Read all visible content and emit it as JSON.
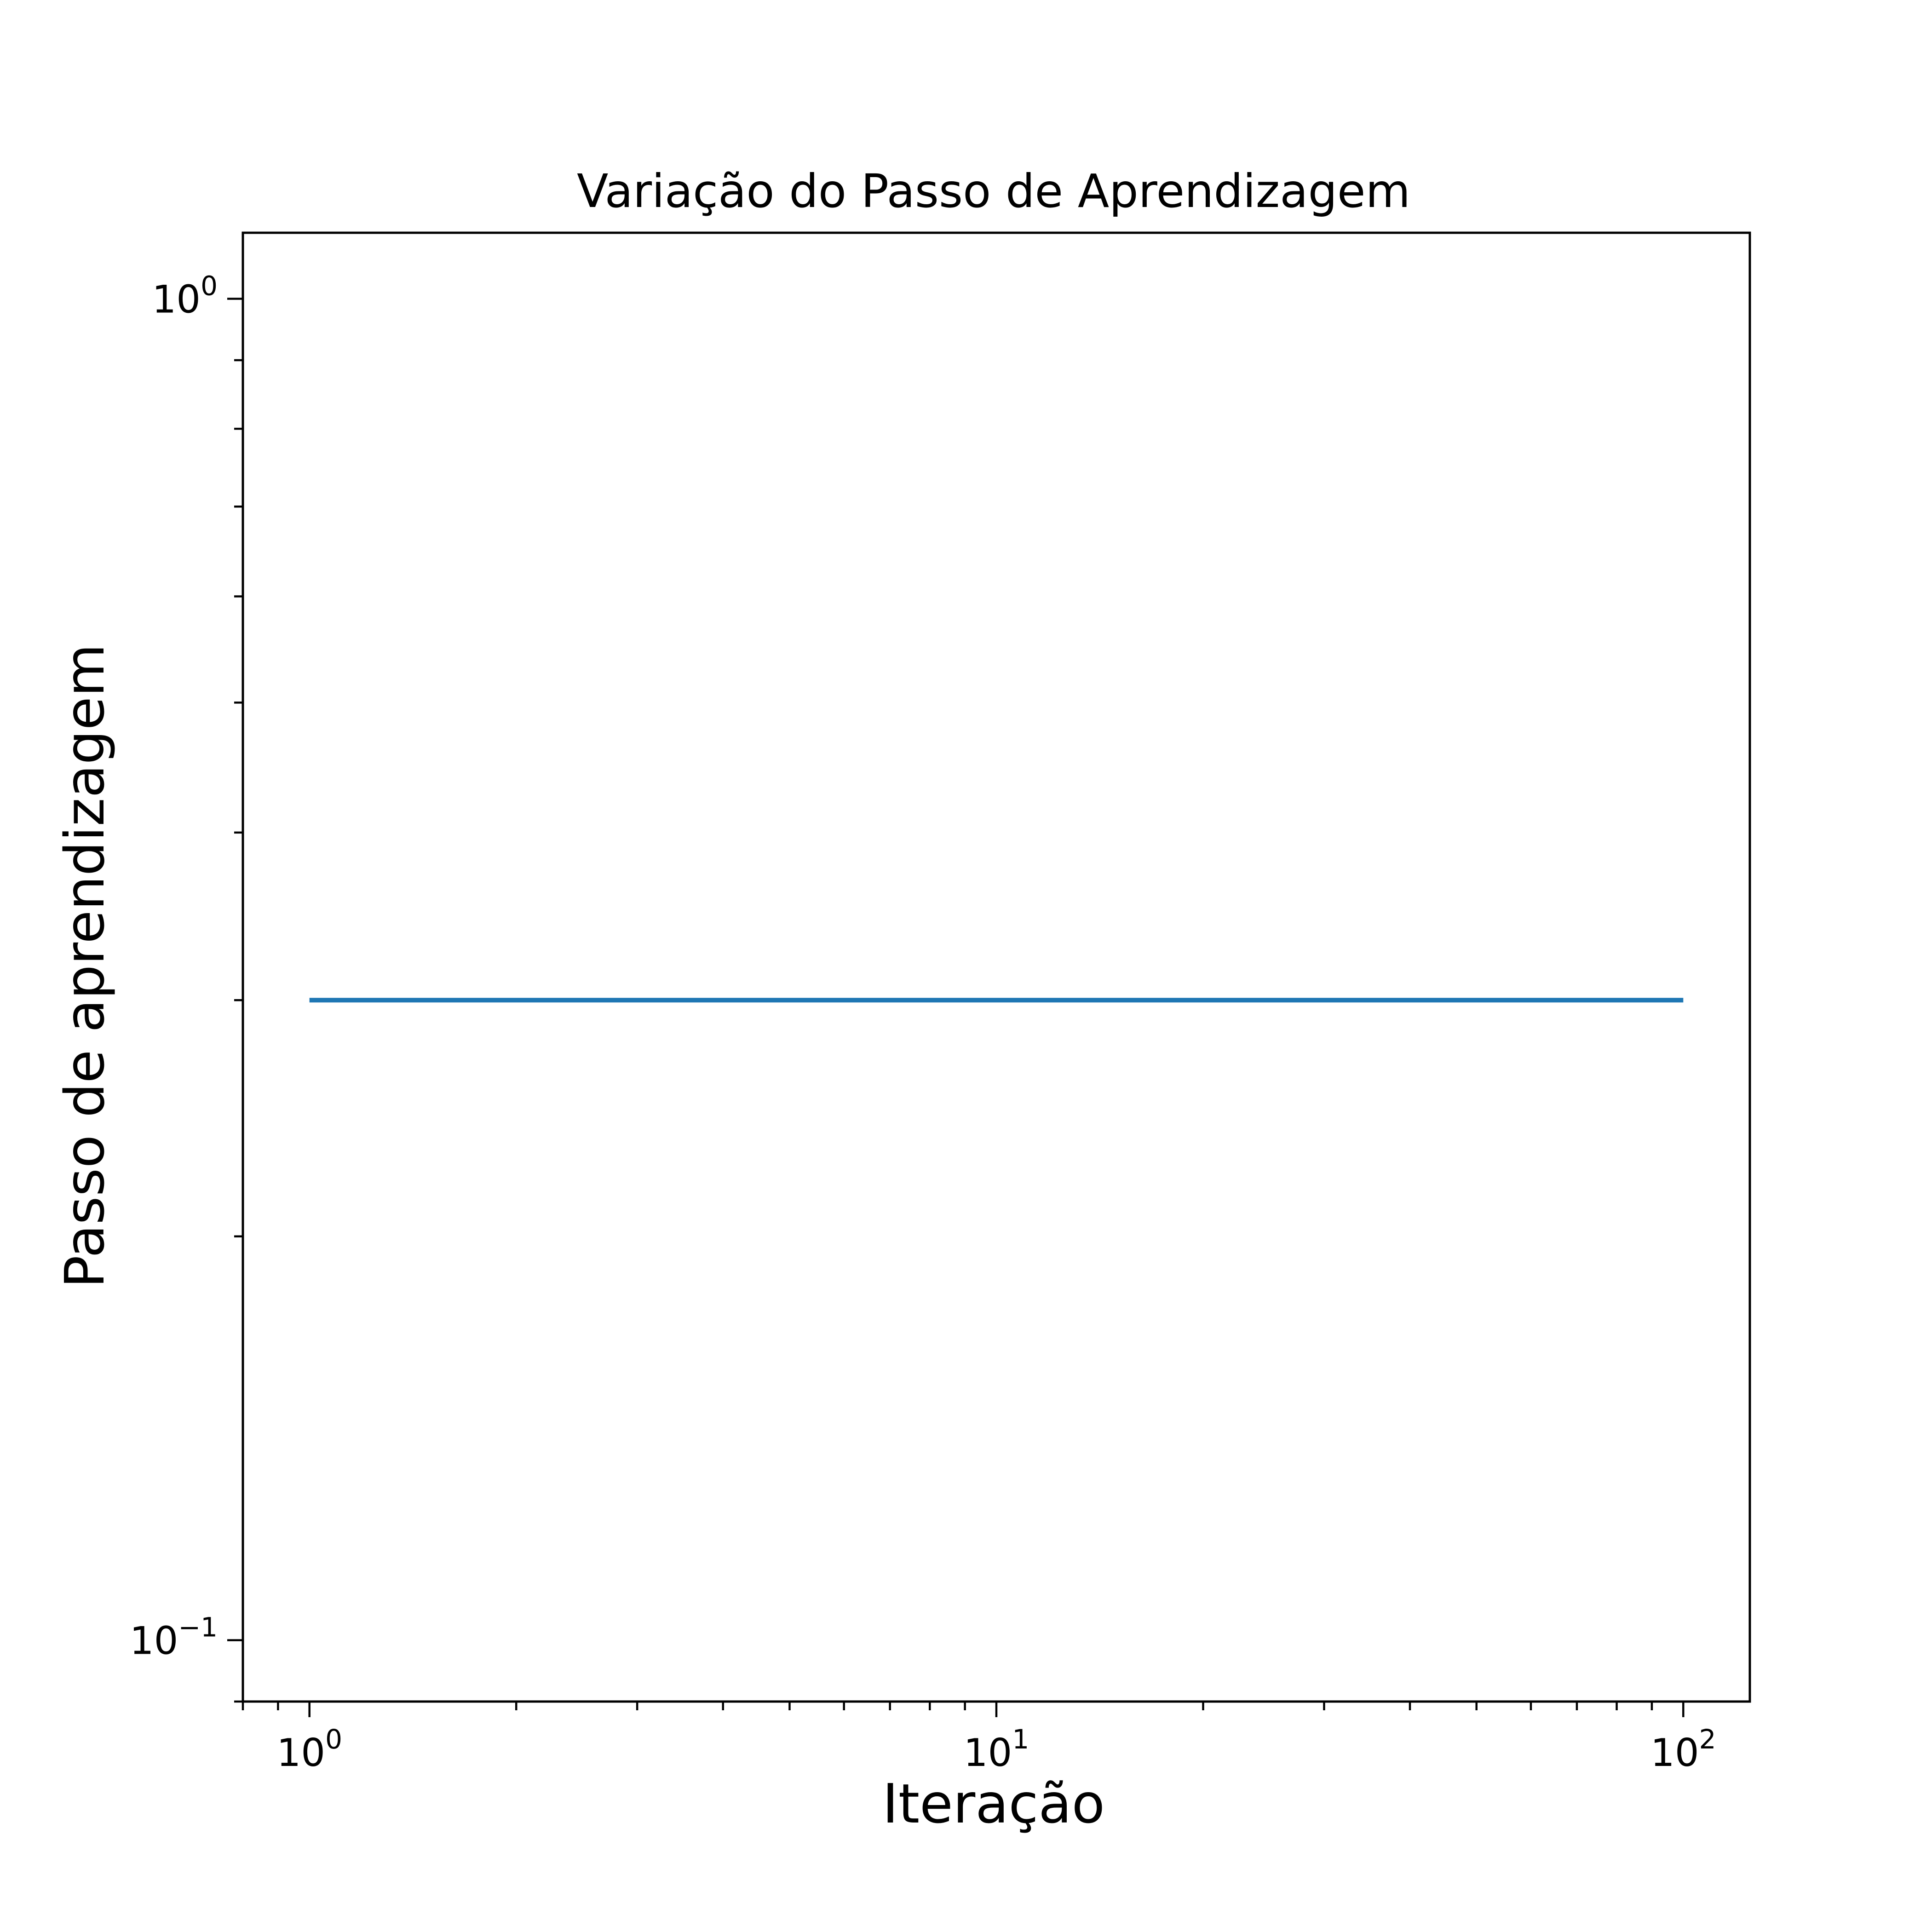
{
  "chart_data": {
    "type": "line",
    "title": "Variação do Passo de Aprendizagem",
    "xlabel": "Iteração",
    "ylabel": "Passo de aprendizagem",
    "xscale": "log",
    "yscale": "log",
    "xlim": [
      0.8,
      125
    ],
    "ylim": [
      0.09,
      1.12
    ],
    "grid": false,
    "legend": "none",
    "x_ticks": [
      {
        "value": 1,
        "base": "10",
        "exp": "0"
      },
      {
        "value": 10,
        "base": "10",
        "exp": "1"
      },
      {
        "value": 100,
        "base": "10",
        "exp": "2"
      }
    ],
    "y_ticks": [
      {
        "value": 1,
        "base": "10",
        "exp": "0"
      },
      {
        "value": 0.1,
        "base": "10",
        "exp": "−1"
      }
    ],
    "series": [
      {
        "color": "#1f77b4",
        "x": [
          1,
          100
        ],
        "y": [
          0.3,
          0.3
        ]
      }
    ]
  }
}
